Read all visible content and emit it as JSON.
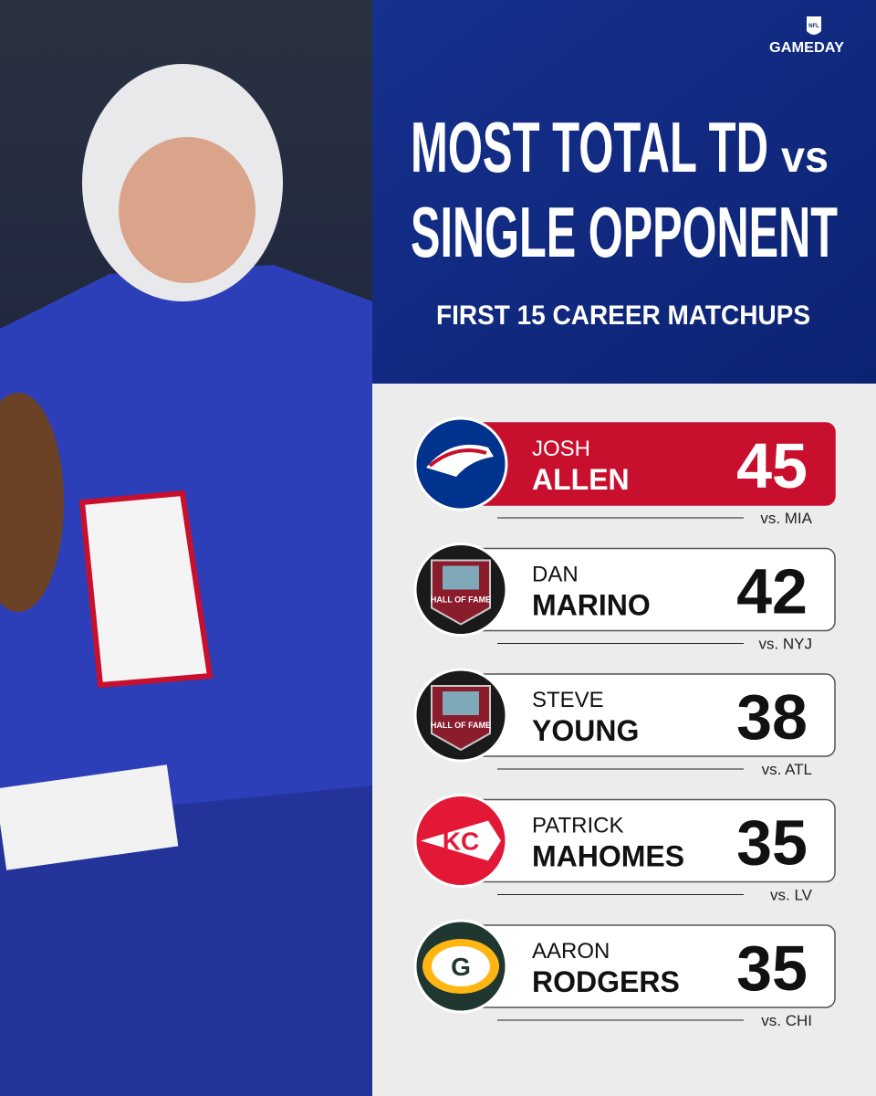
{
  "brand": {
    "logo": "NFL",
    "name": "GAMEDAY"
  },
  "header": {
    "title_line1": "MOST TOTAL TD",
    "title_vs": "vs",
    "title_line2": "SINGLE OPPONENT",
    "subtitle": "FIRST 15 CAREER MATCHUPS"
  },
  "rows": [
    {
      "first": "JOSH",
      "last": "ALLEN",
      "value": "45",
      "opponent": "vs. MIA"
    },
    {
      "first": "DAN",
      "last": "MARINO",
      "value": "42",
      "opponent": "vs. NYJ",
      "logo_text": "HALL OF FAME"
    },
    {
      "first": "STEVE",
      "last": "YOUNG",
      "value": "38",
      "opponent": "vs. ATL",
      "logo_text": "HALL OF FAME"
    },
    {
      "first": "PATRICK",
      "last": "MAHOMES",
      "value": "35",
      "opponent": "vs. LV",
      "logo_text": "KC"
    },
    {
      "first": "AARON",
      "last": "RODGERS",
      "value": "35",
      "opponent": "vs. CHI",
      "logo_text": "G"
    }
  ]
}
